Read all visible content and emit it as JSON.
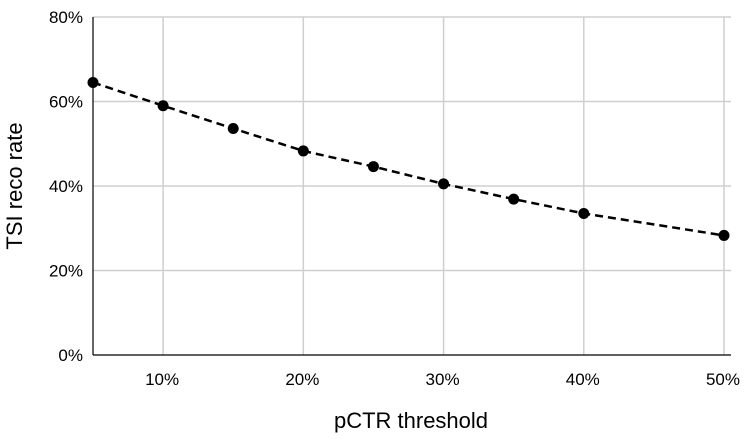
{
  "chart_data": {
    "type": "line",
    "xlabel": "pCTR threshold",
    "ylabel": "TSI reco rate",
    "xlim": [
      5,
      50.5
    ],
    "ylim": [
      0,
      80
    ],
    "x_ticks": [
      10,
      20,
      30,
      40,
      50
    ],
    "x_tick_labels": [
      "10%",
      "20%",
      "30%",
      "40%",
      "50%"
    ],
    "y_ticks": [
      0,
      20,
      40,
      60,
      80
    ],
    "y_tick_labels": [
      "0%",
      "20%",
      "40%",
      "60%",
      "80%"
    ],
    "grid": true,
    "legend": "none",
    "series": [
      {
        "x": [
          5,
          10,
          15,
          20,
          25,
          30,
          35,
          40,
          50
        ],
        "y": [
          64.5,
          59.0,
          53.6,
          48.3,
          44.6,
          40.5,
          36.9,
          33.5,
          28.3
        ],
        "line_style": "dashed",
        "marker": "circle",
        "color": "#000000"
      }
    ]
  }
}
